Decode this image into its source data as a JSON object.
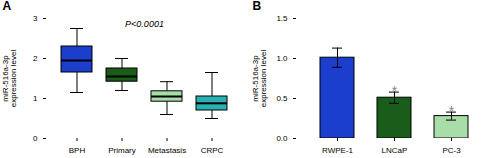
{
  "chart_data": [
    {
      "type": "box",
      "title": "A",
      "categories": [
        "BPH",
        "Primary",
        "Metastasis",
        "CRPC"
      ],
      "ylabel": "miR-516a-3p\nexpression level",
      "ylim": [
        0,
        3
      ],
      "yticks": [
        0,
        1,
        2,
        3
      ],
      "annotation": "P<0.0001",
      "colors": [
        "#1C3ECC",
        "#1A5C1A",
        "#A8DCA8",
        "#2AB0B0"
      ],
      "median": [
        1.95,
        1.55,
        1.05,
        0.88
      ],
      "q1": [
        1.65,
        1.42,
        0.92,
        0.7
      ],
      "q3": [
        2.3,
        1.75,
        1.18,
        1.05
      ],
      "whislo": [
        1.15,
        1.2,
        0.6,
        0.5
      ],
      "whishi": [
        2.75,
        2.0,
        1.42,
        1.65
      ]
    },
    {
      "type": "bar",
      "title": "B",
      "categories": [
        "RWPE-1",
        "LNCaP",
        "PC-3"
      ],
      "values": [
        1.01,
        0.51,
        0.28
      ],
      "errors": [
        0.12,
        0.07,
        0.05
      ],
      "colors": [
        "#1C3ECC",
        "#1A5C1A",
        "#A8DCA8"
      ],
      "ylabel": "miR-516a-3p\nexpression level",
      "ylim": [
        0,
        1.5
      ],
      "yticks": [
        {
          "value": 0,
          "label": "0.0"
        },
        0.5,
        {
          "value": 1,
          "label": "1.0"
        },
        1.5
      ],
      "annotations": [
        {
          "category": "LNCaP",
          "text": "*",
          "color": "#888888"
        },
        {
          "category": "PC-3",
          "text": "*",
          "color": "#888888"
        }
      ]
    }
  ]
}
